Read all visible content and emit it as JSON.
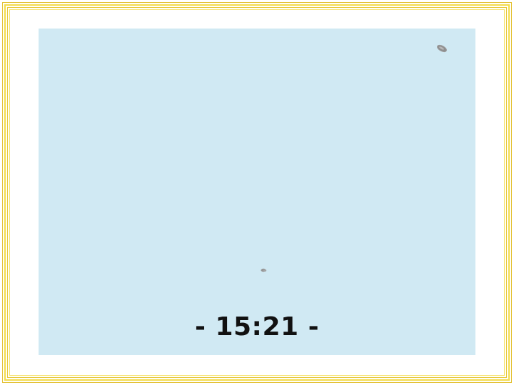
{
  "timer": {
    "text": "- 15:21 -"
  },
  "colors": {
    "frame_gold": "#f3dc4e",
    "screen_bg": "#d0e9f3",
    "timer_text": "#111111",
    "pebble": "#8f8f8f"
  },
  "icons": {
    "top_right": "pebble-icon",
    "center_bottom": "pebble-icon"
  }
}
